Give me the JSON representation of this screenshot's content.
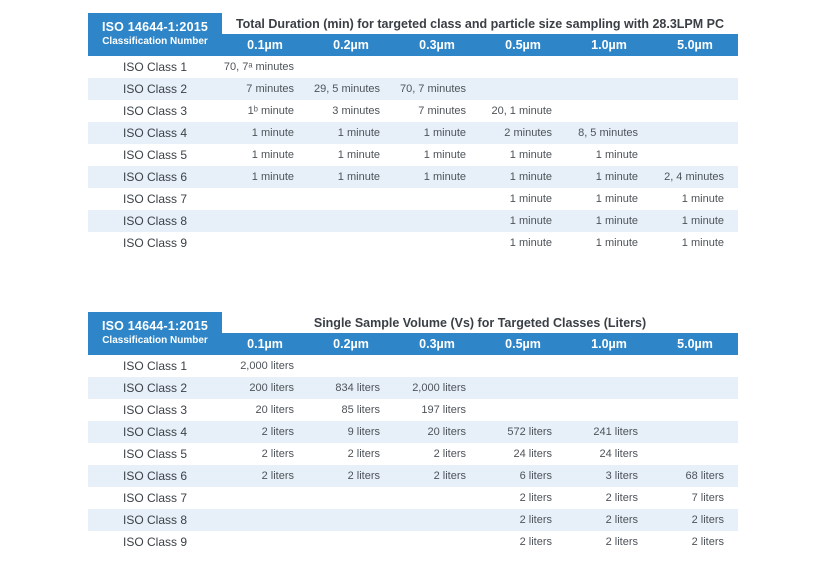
{
  "colors": {
    "header_blue": "#2e86c8",
    "row_alt_blue": "#e7f0f8",
    "header_text": "#ffffff",
    "title_text": "#3a3f45",
    "body_text": "#4d5359"
  },
  "tables": [
    {
      "brand_line1": "ISO 14644-1:2015",
      "brand_line2": "Classification Number",
      "title": "Total Duration (min) for targeted class and particle size sampling with 28.3LPM PC",
      "columns": [
        "0.1µm",
        "0.2µm",
        "0.3µm",
        "0.5µm",
        "1.0µm",
        "5.0µm"
      ],
      "rows": [
        {
          "label": "ISO Class 1",
          "values": [
            "70, 7ᵃ minutes",
            "",
            "",
            "",
            "",
            ""
          ]
        },
        {
          "label": "ISO Class 2",
          "values": [
            "7 minutes",
            "29, 5 minutes",
            "70, 7 minutes",
            "",
            "",
            ""
          ]
        },
        {
          "label": "ISO Class 3",
          "values": [
            "1ᵇ minute",
            "3 minutes",
            "7 minutes",
            "20, 1 minute",
            "",
            ""
          ]
        },
        {
          "label": "ISO Class 4",
          "values": [
            "1 minute",
            "1 minute",
            "1 minute",
            "2 minutes",
            "8, 5 minutes",
            ""
          ]
        },
        {
          "label": "ISO Class 5",
          "values": [
            "1 minute",
            "1 minute",
            "1 minute",
            "1 minute",
            "1 minute",
            ""
          ]
        },
        {
          "label": "ISO Class 6",
          "values": [
            "1 minute",
            "1 minute",
            "1 minute",
            "1 minute",
            "1 minute",
            "2, 4 minutes"
          ]
        },
        {
          "label": "ISO Class 7",
          "values": [
            "",
            "",
            "",
            "1 minute",
            "1 minute",
            "1 minute"
          ]
        },
        {
          "label": "ISO Class 8",
          "values": [
            "",
            "",
            "",
            "1 minute",
            "1 minute",
            "1 minute"
          ]
        },
        {
          "label": "ISO Class 9",
          "values": [
            "",
            "",
            "",
            "1 minute",
            "1 minute",
            "1 minute"
          ]
        }
      ]
    },
    {
      "brand_line1": "ISO 14644-1:2015",
      "brand_line2": "Classification Number",
      "title": "Single Sample Volume (Vs) for Targeted Classes (Liters)",
      "columns": [
        "0.1µm",
        "0.2µm",
        "0.3µm",
        "0.5µm",
        "1.0µm",
        "5.0µm"
      ],
      "rows": [
        {
          "label": "ISO Class 1",
          "values": [
            "2,000 liters",
            "",
            "",
            "",
            "",
            ""
          ]
        },
        {
          "label": "ISO Class 2",
          "values": [
            "200 liters",
            "834 liters",
            "2,000 liters",
            "",
            "",
            ""
          ]
        },
        {
          "label": "ISO Class 3",
          "values": [
            "20 liters",
            "85 liters",
            "197 liters",
            "",
            "",
            ""
          ]
        },
        {
          "label": "ISO Class 4",
          "values": [
            "2 liters",
            "9 liters",
            "20 liters",
            "572 liters",
            "241 liters",
            ""
          ]
        },
        {
          "label": "ISO Class 5",
          "values": [
            "2 liters",
            "2 liters",
            "2 liters",
            "24 liters",
            "24 liters",
            ""
          ]
        },
        {
          "label": "ISO Class 6",
          "values": [
            "2 liters",
            "2 liters",
            "2 liters",
            "6 liters",
            "3 liters",
            "68 liters"
          ]
        },
        {
          "label": "ISO Class 7",
          "values": [
            "",
            "",
            "",
            "2 liters",
            "2 liters",
            "7 liters"
          ]
        },
        {
          "label": "ISO Class 8",
          "values": [
            "",
            "",
            "",
            "2 liters",
            "2 liters",
            "2 liters"
          ]
        },
        {
          "label": "ISO Class 9",
          "values": [
            "",
            "",
            "",
            "2 liters",
            "2 liters",
            "2 liters"
          ]
        }
      ]
    }
  ]
}
